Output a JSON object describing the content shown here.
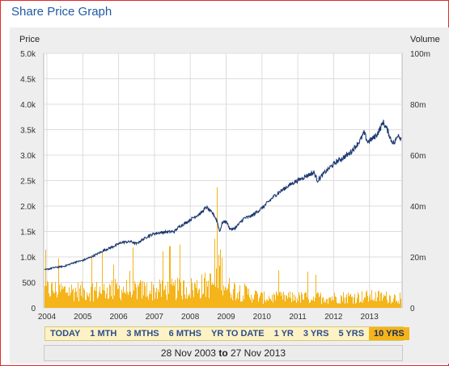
{
  "title": "Share Price Graph",
  "chart_data": {
    "type": "line",
    "ylabel": "Price",
    "y2label": "Volume",
    "ylim": [
      0,
      5000
    ],
    "y2lim": [
      0,
      100000000
    ],
    "yticks": [
      "0",
      "500",
      "1.0k",
      "1.5k",
      "2.0k",
      "2.5k",
      "3.0k",
      "3.5k",
      "4.0k",
      "4.5k",
      "5.0k"
    ],
    "y2ticks": [
      "0",
      "20m",
      "40m",
      "60m",
      "80m",
      "100m"
    ],
    "xticks": [
      "2004",
      "2005",
      "2006",
      "2007",
      "2008",
      "2009",
      "2010",
      "2011",
      "2012",
      "2013"
    ],
    "xlim": [
      2003.91,
      2013.91
    ],
    "grid": true,
    "series": [
      {
        "values": [
          [
            2003.91,
            740
          ],
          [
            2004.2,
            790
          ],
          [
            2004.5,
            820
          ],
          [
            2004.8,
            900
          ],
          [
            2005.0,
            930
          ],
          [
            2005.3,
            1020
          ],
          [
            2005.6,
            1130
          ],
          [
            2005.9,
            1220
          ],
          [
            2006.1,
            1290
          ],
          [
            2006.35,
            1300
          ],
          [
            2006.5,
            1260
          ],
          [
            2006.8,
            1400
          ],
          [
            2007.0,
            1460
          ],
          [
            2007.3,
            1490
          ],
          [
            2007.55,
            1500
          ],
          [
            2007.7,
            1600
          ],
          [
            2007.9,
            1680
          ],
          [
            2008.1,
            1780
          ],
          [
            2008.3,
            1860
          ],
          [
            2008.45,
            1980
          ],
          [
            2008.55,
            1900
          ],
          [
            2008.65,
            1840
          ],
          [
            2008.75,
            1700
          ],
          [
            2008.82,
            1500
          ],
          [
            2008.9,
            1680
          ],
          [
            2009.0,
            1700
          ],
          [
            2009.1,
            1560
          ],
          [
            2009.2,
            1540
          ],
          [
            2009.35,
            1640
          ],
          [
            2009.5,
            1760
          ],
          [
            2009.7,
            1800
          ],
          [
            2009.85,
            1880
          ],
          [
            2010.0,
            1960
          ],
          [
            2010.15,
            2060
          ],
          [
            2010.35,
            2200
          ],
          [
            2010.5,
            2280
          ],
          [
            2010.7,
            2380
          ],
          [
            2010.9,
            2470
          ],
          [
            2011.0,
            2500
          ],
          [
            2011.2,
            2580
          ],
          [
            2011.45,
            2660
          ],
          [
            2011.55,
            2500
          ],
          [
            2011.7,
            2620
          ],
          [
            2011.9,
            2760
          ],
          [
            2012.1,
            2880
          ],
          [
            2012.25,
            2940
          ],
          [
            2012.45,
            3040
          ],
          [
            2012.6,
            3160
          ],
          [
            2012.75,
            3300
          ],
          [
            2012.85,
            3440
          ],
          [
            2012.95,
            3260
          ],
          [
            2013.1,
            3330
          ],
          [
            2013.2,
            3400
          ],
          [
            2013.3,
            3520
          ],
          [
            2013.38,
            3650
          ],
          [
            2013.45,
            3560
          ],
          [
            2013.52,
            3460
          ],
          [
            2013.6,
            3300
          ],
          [
            2013.7,
            3230
          ],
          [
            2013.8,
            3420
          ],
          [
            2013.91,
            3280
          ]
        ]
      }
    ],
    "volume_profile": [
      [
        2003.91,
        9000000
      ],
      [
        2005.0,
        8000000
      ],
      [
        2006.0,
        9000000
      ],
      [
        2007.0,
        8500000
      ],
      [
        2008.0,
        9500000
      ],
      [
        2008.7,
        12000000
      ],
      [
        2008.8,
        22000000
      ],
      [
        2009.0,
        10000000
      ],
      [
        2010.0,
        5000000
      ],
      [
        2011.0,
        5000000
      ],
      [
        2012.0,
        5000000
      ],
      [
        2013.0,
        5500000
      ],
      [
        2013.91,
        5000000
      ]
    ]
  },
  "ranges": [
    "TODAY",
    "1 MTH",
    "3 MTHS",
    "6 MTHS",
    "YR TO DATE",
    "1 YR",
    "3 YRS",
    "5 YRS",
    "10 YRS"
  ],
  "active_range": "10 YRS",
  "dates": {
    "from": "28 Nov 2003",
    "to_word": "to",
    "to": "27 Nov 2013"
  },
  "colors": {
    "price_line": "#1c3870",
    "volume_bars": "#f4b41a",
    "plot_bg": "#ffffff",
    "grid": "#dddddd",
    "title": "#1f5aa6"
  }
}
